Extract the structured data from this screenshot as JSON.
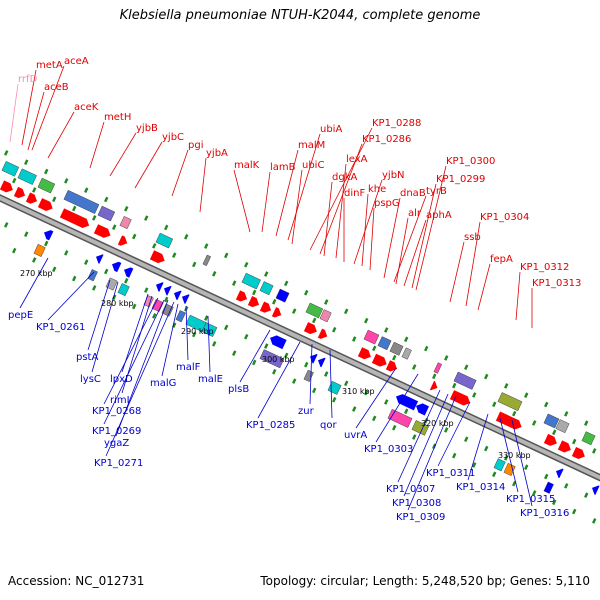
{
  "title": "Klebsiella pneumoniae NTUH-K2044, complete genome",
  "accession_text": "Accession: NC_012731",
  "summary_text": "Topology: circular; Length: 5,248,520 bp; Genes: 5,110",
  "colors": {
    "forward_label": "#e00000",
    "reverse_label": "#0000cc",
    "rna_label": "#ff88bb",
    "backbone": "#888888",
    "ticks": "#228822"
  },
  "scale_labels": [
    "270 kbp",
    "280 kbp",
    "290 kbp",
    "300 kbp",
    "310 kbp",
    "320 kbp",
    "330 kbp"
  ],
  "forward_genes": [
    {
      "label": "rrfD",
      "color": "#ff88bb"
    },
    {
      "label": "metA"
    },
    {
      "label": "aceA"
    },
    {
      "label": "aceB"
    },
    {
      "label": "aceK"
    },
    {
      "label": "metH"
    },
    {
      "label": "yjbB"
    },
    {
      "label": "yjbC"
    },
    {
      "label": "pgi"
    },
    {
      "label": "yjbA"
    },
    {
      "label": "malK"
    },
    {
      "label": "lamB"
    },
    {
      "label": "malM"
    },
    {
      "label": "ubiA"
    },
    {
      "label": "ubiC"
    },
    {
      "label": "KP1_0288"
    },
    {
      "label": "KP1_0286"
    },
    {
      "label": "dgkA"
    },
    {
      "label": "lexA"
    },
    {
      "label": "dinF"
    },
    {
      "label": "yjbN"
    },
    {
      "label": "khe"
    },
    {
      "label": "pspG"
    },
    {
      "label": "dnaB"
    },
    {
      "label": "tyrB"
    },
    {
      "label": "alr"
    },
    {
      "label": "aphA"
    },
    {
      "label": "KP1_0300"
    },
    {
      "label": "KP1_0299"
    },
    {
      "label": "ssb"
    },
    {
      "label": "KP1_0304"
    },
    {
      "label": "fepA"
    },
    {
      "label": "KP1_0312"
    },
    {
      "label": "KP1_0313"
    }
  ],
  "reverse_genes": [
    {
      "label": "pepE"
    },
    {
      "label": "KP1_0261"
    },
    {
      "label": "pstA"
    },
    {
      "label": "lysC"
    },
    {
      "label": "lpxD"
    },
    {
      "label": "rimI"
    },
    {
      "label": "KP1_0268"
    },
    {
      "label": "KP1_0269"
    },
    {
      "label": "ygaZ"
    },
    {
      "label": "KP1_0271"
    },
    {
      "label": "malG"
    },
    {
      "label": "malF"
    },
    {
      "label": "malE"
    },
    {
      "label": "plsB"
    },
    {
      "label": "KP1_0285"
    },
    {
      "label": "zur"
    },
    {
      "label": "qor"
    },
    {
      "label": "uvrA"
    },
    {
      "label": "KP1_0303"
    },
    {
      "label": "KP1_0307"
    },
    {
      "label": "KP1_0308"
    },
    {
      "label": "KP1_0309"
    },
    {
      "label": "KP1_0311"
    },
    {
      "label": "KP1_0314"
    },
    {
      "label": "KP1_0315"
    },
    {
      "label": "KP1_0316"
    }
  ]
}
